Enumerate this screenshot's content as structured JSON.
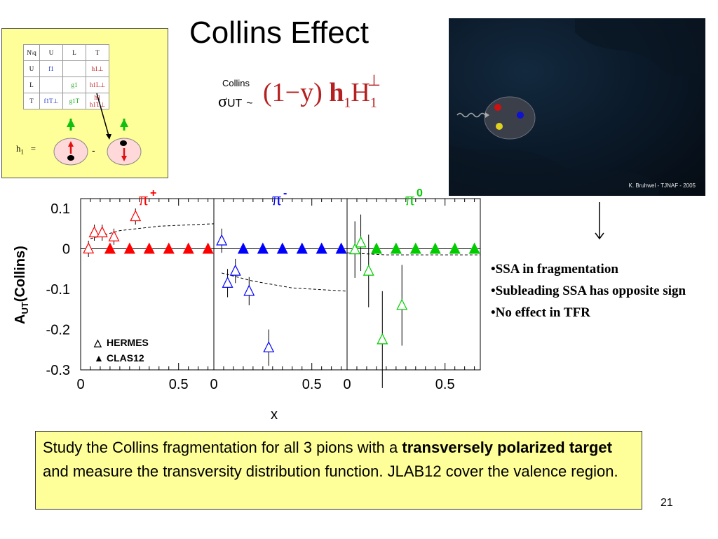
{
  "title": "Collins Effect",
  "table": {
    "corner": "N\\q",
    "cols": [
      "U",
      "L",
      "T"
    ],
    "rows": [
      {
        "label": "U",
        "cells": [
          {
            "text": "f1",
            "color": "blue"
          },
          {
            "text": "",
            "color": ""
          },
          {
            "text": "h1⊥",
            "color": "red"
          }
        ]
      },
      {
        "label": "L",
        "cells": [
          {
            "text": "",
            "color": ""
          },
          {
            "text": "g1",
            "color": "green"
          },
          {
            "text": "h1L⊥",
            "color": "red"
          }
        ]
      },
      {
        "label": "T",
        "cells": [
          {
            "text": "f1T⊥",
            "color": "blue"
          },
          {
            "text": "g1T",
            "color": "green"
          },
          {
            "text": "h1  h1T⊥",
            "color": "red"
          }
        ]
      }
    ],
    "h1_label": "h",
    "h1_sub": "1",
    "equals": "=",
    "minus": "-"
  },
  "formula": {
    "superscript": "Collins",
    "sigma": "σ",
    "sub": "UT",
    "tilde": "~",
    "expression": "(1−y) ",
    "h": "h",
    "h_sub": "1",
    "H": "H",
    "H_sub": "1",
    "H_sup": "⊥"
  },
  "image": {
    "credit": "K. Bruhwel - TJNAF - 2005",
    "quark_colors": [
      "#d01010",
      "#1010d0",
      "#e0d020"
    ]
  },
  "bullets": [
    "•SSA in fragmentation",
    "•Subleading SSA has opposite  sign",
    "•No effect in TFR"
  ],
  "study_box": {
    "text_before": "Study the Collins fragmentation for all 3 pions with a ",
    "bold_text": "transversely polarized target",
    "text_after": " and measure the transversity distribution function. JLAB12 cover the valence region."
  },
  "page_number": "21",
  "chart_data": {
    "type": "scatter",
    "ylabel": "A",
    "ylabel_sub": "UT",
    "ylabel_rest": "(Collins)",
    "xlabel": "x",
    "ylim": [
      -0.3,
      0.1
    ],
    "xlim": [
      0,
      0.68
    ],
    "yticks": [
      "0.1",
      "0",
      "-0.1",
      "-0.2",
      "-0.3"
    ],
    "xticks": [
      "0",
      "0.5"
    ],
    "legend": [
      {
        "marker": "△",
        "label": "HERMES"
      },
      {
        "marker": "▲",
        "label": "CLAS12"
      }
    ],
    "panels": [
      {
        "label": "π",
        "label_sup": "+",
        "color": "#ff0000",
        "hermes": [
          {
            "x": 0.04,
            "y": 0.0,
            "err": 0.02
          },
          {
            "x": 0.07,
            "y": 0.04,
            "err": 0.02
          },
          {
            "x": 0.11,
            "y": 0.04,
            "err": 0.02
          },
          {
            "x": 0.17,
            "y": 0.03,
            "err": 0.02
          },
          {
            "x": 0.28,
            "y": 0.08,
            "err": 0.02
          }
        ],
        "clas12": [
          0.15,
          0.25,
          0.35,
          0.45,
          0.55,
          0.65
        ],
        "curve": [
          [
            0.05,
            0.025
          ],
          [
            0.2,
            0.045
          ],
          [
            0.4,
            0.056
          ],
          [
            0.68,
            0.062
          ]
        ]
      },
      {
        "label": "π",
        "label_sup": "-",
        "color": "#0000ff",
        "hermes": [
          {
            "x": 0.04,
            "y": 0.02,
            "err": 0.03
          },
          {
            "x": 0.07,
            "y": -0.085,
            "err": 0.035
          },
          {
            "x": 0.11,
            "y": -0.055,
            "err": 0.03
          },
          {
            "x": 0.18,
            "y": -0.105,
            "err": 0.035
          },
          {
            "x": 0.28,
            "y": -0.245,
            "err": 0.045
          }
        ],
        "clas12": [
          0.15,
          0.25,
          0.35,
          0.45,
          0.55,
          0.65
        ],
        "curve": [
          [
            0.04,
            -0.06
          ],
          [
            0.2,
            -0.08
          ],
          [
            0.4,
            -0.097
          ],
          [
            0.68,
            -0.105
          ]
        ]
      },
      {
        "label": "π",
        "label_sup": "0",
        "color": "#00cc00",
        "hermes": [
          {
            "x": 0.04,
            "y": -0.002,
            "err": 0.07
          },
          {
            "x": 0.07,
            "y": 0.015,
            "err": 0.07
          },
          {
            "x": 0.11,
            "y": -0.055,
            "err": 0.09
          },
          {
            "x": 0.18,
            "y": -0.225,
            "err": 0.12
          },
          {
            "x": 0.28,
            "y": -0.14,
            "err": 0.1
          }
        ],
        "clas12": [
          0.15,
          0.25,
          0.35,
          0.45,
          0.55,
          0.65
        ],
        "curve": [
          [
            0.0,
            -0.01
          ],
          [
            0.2,
            -0.015
          ],
          [
            0.68,
            -0.015
          ]
        ]
      }
    ]
  }
}
